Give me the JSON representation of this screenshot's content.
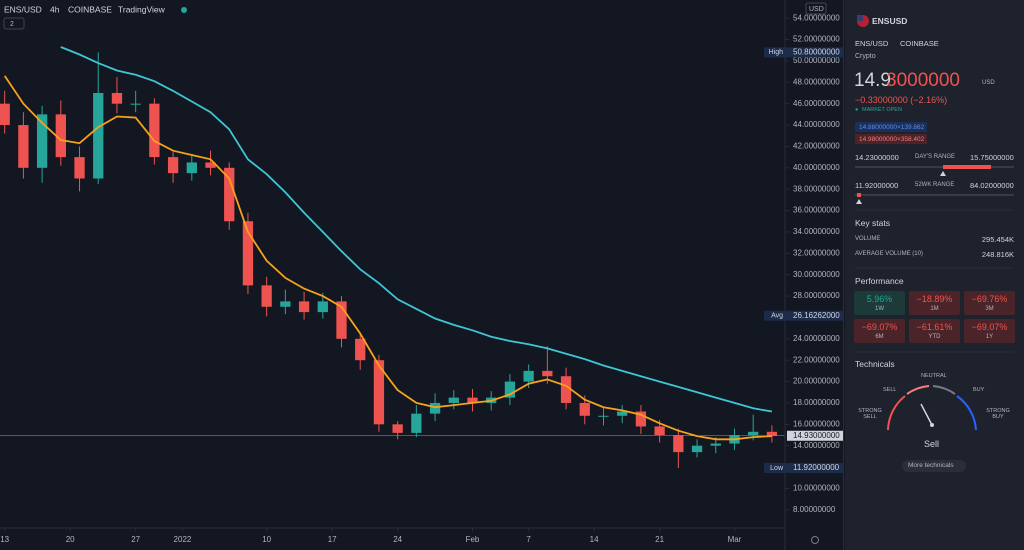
{
  "toolbar": {
    "symbol": "ENS/USD",
    "interval": "4h",
    "exchange": "COINBASE",
    "source": "TradingView",
    "indicators_count": "2",
    "currency": "USD"
  },
  "chart_data": {
    "type": "candlestick",
    "x": [
      0,
      2,
      4,
      6,
      8,
      10,
      12,
      14,
      16,
      18,
      20,
      22,
      24,
      26,
      28,
      30,
      32,
      34,
      36,
      38,
      40,
      42,
      44,
      46,
      48,
      50,
      52,
      54,
      56,
      58,
      60,
      62,
      64,
      66,
      68,
      70,
      72,
      74,
      76,
      78,
      80,
      82
    ],
    "open": [
      46,
      44,
      40,
      45,
      41,
      39,
      47,
      46,
      46,
      41,
      39.5,
      40.5,
      40,
      35,
      29,
      27,
      27.5,
      26.5,
      27.5,
      24,
      22,
      16,
      15.2,
      17,
      18,
      18.5,
      18,
      18.5,
      20,
      21,
      20.5,
      18,
      16.8,
      16.8,
      17.2,
      15.8,
      15,
      13.4,
      14,
      14.2,
      15,
      15.3
    ],
    "high": [
      47.2,
      45.2,
      45.8,
      46.3,
      42,
      50.8,
      48.5,
      47.2,
      46.5,
      41.5,
      41.3,
      41.6,
      40.5,
      35.8,
      29.8,
      28.6,
      28.4,
      28.3,
      28,
      24.6,
      22.5,
      16.3,
      17.8,
      18.9,
      19.2,
      19.3,
      19.1,
      20.7,
      21.6,
      23.3,
      21.3,
      18.7,
      17.6,
      17.8,
      17.8,
      16.4,
      15.6,
      14.6,
      14.8,
      15.6,
      16.9,
      15.9
    ],
    "low": [
      43.2,
      39,
      38.6,
      40.2,
      37.8,
      38.5,
      45.1,
      45.2,
      40.3,
      38.6,
      38.8,
      39.3,
      34.2,
      28.2,
      26.1,
      26.3,
      25.8,
      25.9,
      23.2,
      21.1,
      15.3,
      14.6,
      14.8,
      16.3,
      17.4,
      17.2,
      17.3,
      17.8,
      19.4,
      19.8,
      17.4,
      16,
      15.9,
      16.1,
      15.1,
      14.3,
      11.92,
      12.9,
      13.3,
      13.6,
      14.5,
      14.3
    ],
    "close": [
      44,
      40,
      45,
      41,
      39,
      47,
      46,
      46,
      41,
      39.5,
      40.5,
      40,
      35,
      29,
      27,
      27.5,
      26.5,
      27.5,
      24,
      22,
      16,
      15.2,
      17,
      18,
      18.5,
      18,
      18.5,
      20,
      21,
      20.5,
      18,
      16.8,
      16.8,
      17.2,
      15.8,
      15,
      13.4,
      14,
      14.2,
      15,
      15.3,
      14.93
    ],
    "up_color": "#26a69a",
    "down_color": "#ef5350",
    "moving_averages": [
      {
        "color": "#f7a21b",
        "values": [
          48.6,
          46,
          44.2,
          42.6,
          42.3,
          43.8,
          44.8,
          44.7,
          42.5,
          41.6,
          41.2,
          40.8,
          39,
          34,
          31.3,
          29.7,
          28.7,
          28,
          27,
          24.5,
          21.5,
          19.2,
          18,
          17.6,
          17.8,
          18,
          18.2,
          18.8,
          19.8,
          20.2,
          19.6,
          18.3,
          17.6,
          17.3,
          16.9,
          16.1,
          15.4,
          14.9,
          14.6,
          14.6,
          14.8,
          14.9
        ]
      },
      {
        "color": "#3fc6d6",
        "values": [
          null,
          null,
          null,
          51.3,
          50.6,
          49.8,
          49.1,
          48.7,
          48.1,
          47.2,
          46.2,
          45.2,
          43.6,
          40.8,
          39.4,
          37.7,
          35.8,
          34,
          32.2,
          30.5,
          29.2,
          27.7,
          26.8,
          25.9,
          25.3,
          24.8,
          24.2,
          23.8,
          23.5,
          23.1,
          22.6,
          22.1,
          21.5,
          21,
          20.5,
          20,
          19.5,
          19,
          18.5,
          18,
          17.5,
          17.2
        ]
      }
    ],
    "xlim": [
      -0.5,
      83.4
    ],
    "ylim": [
      6.3,
      55.7
    ],
    "grid": false,
    "xticks": [
      {
        "value": 0,
        "label": "13"
      },
      {
        "value": 7,
        "label": "20"
      },
      {
        "value": 14,
        "label": "27"
      },
      {
        "value": 19,
        "label": "2022"
      },
      {
        "value": 28,
        "label": "10"
      },
      {
        "value": 35,
        "label": "17"
      },
      {
        "value": 42,
        "label": "24"
      },
      {
        "value": 50,
        "label": "Feb"
      },
      {
        "value": 56,
        "label": "7"
      },
      {
        "value": 63,
        "label": "14"
      },
      {
        "value": 70,
        "label": "21"
      },
      {
        "value": 78,
        "label": "Mar"
      }
    ],
    "yticks": [
      {
        "value": 54,
        "label": "54.00000000"
      },
      {
        "value": 52,
        "label": "52.00000000"
      },
      {
        "value": 50,
        "label": "50.00000000"
      },
      {
        "value": 48,
        "label": "48.00000000"
      },
      {
        "value": 46,
        "label": "46.00000000"
      },
      {
        "value": 44,
        "label": "44.00000000"
      },
      {
        "value": 42,
        "label": "42.00000000"
      },
      {
        "value": 40,
        "label": "40.00000000"
      },
      {
        "value": 38,
        "label": "38.00000000"
      },
      {
        "value": 36,
        "label": "36.00000000"
      },
      {
        "value": 34,
        "label": "34.00000000"
      },
      {
        "value": 32,
        "label": "32.00000000"
      },
      {
        "value": 30,
        "label": "30.00000000"
      },
      {
        "value": 28,
        "label": "28.00000000"
      },
      {
        "value": 24,
        "label": "24.00000000"
      },
      {
        "value": 22,
        "label": "22.00000000"
      },
      {
        "value": 20,
        "label": "20.00000000"
      },
      {
        "value": 18,
        "label": "18.00000000"
      },
      {
        "value": 16,
        "label": "16.00000000"
      },
      {
        "value": 14,
        "label": "14.00000000"
      },
      {
        "value": 10,
        "label": "10.00000000"
      },
      {
        "value": 8,
        "label": "8.00000000"
      }
    ],
    "annotations": [
      {
        "label": "High",
        "value": 50.8,
        "value_label": "50.80000000"
      },
      {
        "label": "Avg",
        "value": 26.16262,
        "value_label": "26.16262000"
      },
      {
        "label": "Low",
        "value": 11.92,
        "value_label": "11.92000000"
      }
    ],
    "last_price": {
      "value": 14.93,
      "label": "14.93000000"
    }
  },
  "sidebar": {
    "symbol": "ENSUSD",
    "pair": "ENS/USD",
    "exchange": "COINBASE",
    "category": "Crypto",
    "price_main": "14.9",
    "price_tail": "3000000",
    "price_currency": "USD",
    "change": "−0.33000000 (−2.16%)",
    "market_status": "MARKET OPEN",
    "bid": "14.88000000×139.862",
    "ask": "14.98000000×358.402",
    "day_range": {
      "low": "14.23000000",
      "label": "DAY'S RANGE",
      "high": "15.75000000"
    },
    "week52_range": {
      "low": "11.92000000",
      "label": "52WK RANGE",
      "high": "84.02000000"
    },
    "key_stats": {
      "title": "Key stats",
      "rows": [
        [
          "VOLUME",
          "295.454K"
        ],
        [
          "AVERAGE VOLUME (10)",
          "248.816K"
        ]
      ]
    },
    "performance": {
      "title": "Performance",
      "cells": [
        [
          "5.96%",
          "1W"
        ],
        [
          "−18.89%",
          "1M"
        ],
        [
          "−69.76%",
          "3M"
        ],
        [
          "−69.07%",
          "6M"
        ],
        [
          "−61.61%",
          "YTD"
        ],
        [
          "−69.07%",
          "1Y"
        ]
      ]
    },
    "technicals": {
      "title": "Technicals",
      "sell": "SELL",
      "neutral": "NEUTRAL",
      "buy": "BUY",
      "strong_sell": "STRONG SELL",
      "strong_buy": "STRONG BUY",
      "result": "Sell",
      "button": "More technicals"
    }
  }
}
